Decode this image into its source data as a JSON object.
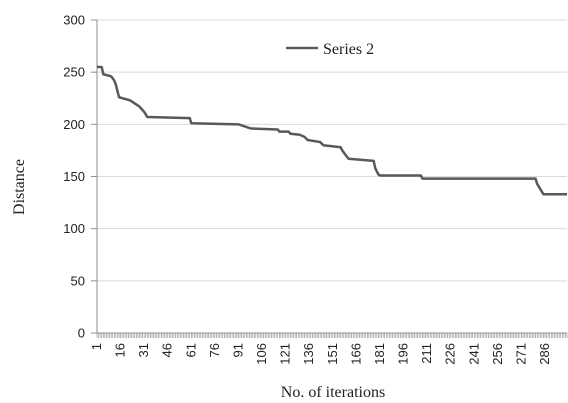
{
  "chart_data": {
    "type": "line",
    "xlabel": "No. of iterations",
    "ylabel": "Distance",
    "ylim": [
      0,
      300
    ],
    "yticks": [
      0,
      50,
      100,
      150,
      200,
      250,
      300
    ],
    "xlim": [
      1,
      300
    ],
    "xticks": [
      1,
      16,
      31,
      46,
      61,
      76,
      91,
      106,
      121,
      136,
      151,
      166,
      181,
      196,
      211,
      226,
      241,
      256,
      271,
      286
    ],
    "grid": "horizontal",
    "legend": "top-center",
    "series": [
      {
        "name": "Series 2",
        "color": "#595959",
        "points": [
          [
            1,
            255
          ],
          [
            4,
            255
          ],
          [
            5,
            248
          ],
          [
            10,
            246
          ],
          [
            12,
            242
          ],
          [
            13,
            238
          ],
          [
            14,
            232
          ],
          [
            15,
            226
          ],
          [
            22,
            223
          ],
          [
            25,
            220
          ],
          [
            28,
            217
          ],
          [
            31,
            212
          ],
          [
            33,
            207
          ],
          [
            60,
            206
          ],
          [
            61,
            201
          ],
          [
            91,
            200
          ],
          [
            99,
            196
          ],
          [
            116,
            195
          ],
          [
            117,
            193
          ],
          [
            123,
            193
          ],
          [
            124,
            191
          ],
          [
            130,
            190
          ],
          [
            133,
            188
          ],
          [
            135,
            185
          ],
          [
            143,
            183
          ],
          [
            145,
            180
          ],
          [
            156,
            178
          ],
          [
            157,
            175
          ],
          [
            159,
            171
          ],
          [
            161,
            167
          ],
          [
            177,
            165
          ],
          [
            178,
            158
          ],
          [
            180,
            152
          ],
          [
            181,
            151
          ],
          [
            207,
            151
          ],
          [
            208,
            148
          ],
          [
            280,
            148
          ],
          [
            281,
            143
          ],
          [
            283,
            138
          ],
          [
            285,
            133
          ],
          [
            300,
            133
          ]
        ]
      }
    ]
  }
}
